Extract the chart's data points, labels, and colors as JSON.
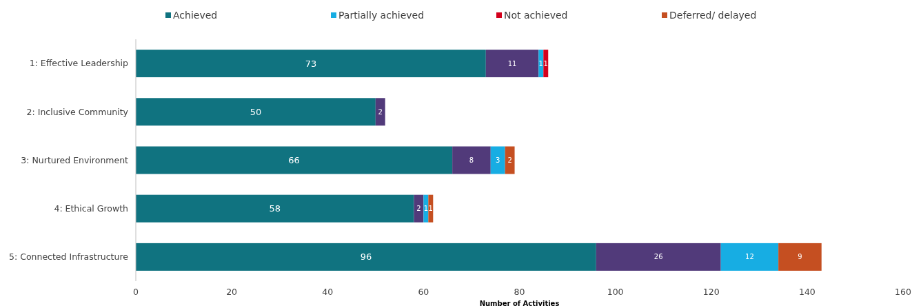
{
  "chart_data": {
    "type": "bar",
    "orientation": "horizontal",
    "stacked": true,
    "data_labels": true,
    "legend": "top",
    "xlabel": "Number of Activities",
    "categories": [
      "1: Effective Leadership",
      "2: Inclusive Community",
      "3: Nurtured Environment",
      "4: Ethical Growth",
      "5: Connected Infrastructure"
    ],
    "xlim": [
      0,
      160
    ],
    "xticks": [
      0,
      20,
      40,
      60,
      80,
      100,
      120,
      140,
      160
    ],
    "series": [
      {
        "name": "Achieved",
        "color": "#107380",
        "values": [
          73,
          50,
          66,
          58,
          96
        ]
      },
      {
        "color": "#513a7a",
        "values": [
          11,
          2,
          8,
          2,
          26
        ]
      },
      {
        "name": "Partially achieved",
        "color": "#17ade3",
        "values": [
          1,
          null,
          3,
          1,
          12
        ]
      },
      {
        "name": "Not achieved",
        "color": "#d3001c",
        "values": [
          1,
          null,
          null,
          null,
          null
        ]
      },
      {
        "name": "Deferred/ delayed",
        "color": "#c54f21",
        "values": [
          null,
          null,
          2,
          1,
          9
        ]
      }
    ]
  }
}
